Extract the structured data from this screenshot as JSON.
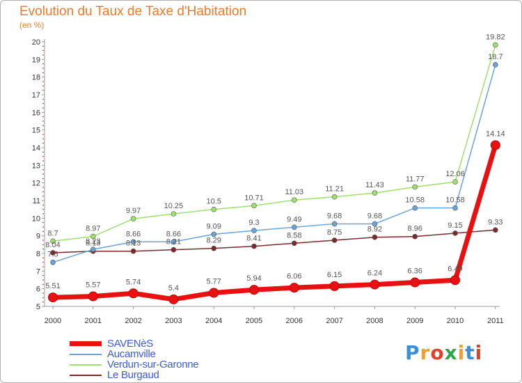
{
  "header": {
    "title": "Evolution du Taux de Taxe d'Habitation",
    "subtitle": "(en %)"
  },
  "logo": {
    "text": "Proxiti",
    "colors": [
      "#3b8fd6",
      "#f0a030",
      "#e2402a",
      "#2aa84a",
      "#f0a030",
      "#3b8fd6",
      "#e2402a"
    ]
  },
  "chart_data": {
    "type": "line",
    "x": [
      "2000",
      "2001",
      "2002",
      "2003",
      "2004",
      "2005",
      "2006",
      "2007",
      "2008",
      "2009",
      "2010",
      "2011"
    ],
    "ylim": [
      5,
      20
    ],
    "yticks": [
      5,
      6,
      7,
      8,
      9,
      10,
      11,
      12,
      13,
      14,
      15,
      16,
      17,
      18,
      19,
      20
    ],
    "grid": false,
    "legend_position": "bottom-left",
    "series": [
      {
        "name": "SAVENèS",
        "color": "#e81010",
        "values": [
          5.51,
          5.57,
          5.74,
          5.4,
          5.77,
          5.94,
          6.06,
          6.15,
          6.24,
          6.36,
          6.49,
          14.14
        ],
        "labels": [
          "5.51",
          "5.57",
          "5.74",
          "5.4",
          "5.77",
          "5.94",
          "6.06",
          "6.15",
          "6.24",
          "6.36",
          "6.49",
          "14.14"
        ]
      },
      {
        "name": "Aucamville",
        "color": "#6aa3d8",
        "values": [
          7.5,
          8.23,
          8.66,
          8.66,
          9.09,
          9.3,
          9.49,
          9.68,
          9.68,
          10.58,
          10.58,
          18.7
        ],
        "labels": [
          "7.5",
          "8.23",
          "8.66",
          "8.66",
          "9.09",
          "9.3",
          "9.49",
          "9.68",
          "9.68",
          "10.58",
          "10.58",
          "18.7"
        ]
      },
      {
        "name": "Verdun-sur-Garonne",
        "color": "#9ee06e",
        "values": [
          8.7,
          8.97,
          9.97,
          10.25,
          10.5,
          10.71,
          11.03,
          11.21,
          11.43,
          11.77,
          12.06,
          19.82
        ],
        "labels": [
          "8.7",
          "8.97",
          "9.97",
          "10.25",
          "10.5",
          "10.71",
          "11.03",
          "11.21",
          "11.43",
          "11.77",
          "12.06",
          "19.82"
        ]
      },
      {
        "name": "Le Burgaud",
        "color": "#7a2a2a",
        "values": [
          8.04,
          8.13,
          8.13,
          8.21,
          8.29,
          8.41,
          8.58,
          8.75,
          8.92,
          8.96,
          9.15,
          9.33
        ],
        "labels": [
          "8.04",
          "8.13",
          "8.13",
          "8.21",
          "8.29",
          "8.41",
          "8.58",
          "8.75",
          "8.92",
          "8.96",
          "9.15",
          "9.33"
        ]
      }
    ]
  }
}
